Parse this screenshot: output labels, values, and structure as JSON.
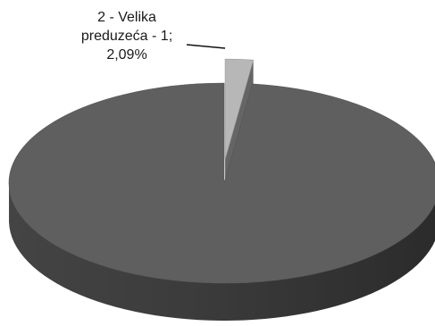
{
  "chart_data": {
    "type": "pie",
    "style": "3d-exploded",
    "legend": "none",
    "slices": [
      {
        "label_lines": [
          "2 - Velika",
          "preduzeća - 1;",
          "2,09%"
        ],
        "percent": 2.09,
        "color": "#b7b7b7",
        "exploded": true
      },
      {
        "label_lines": [],
        "percent": 97.91,
        "color": "#5f5f5f",
        "exploded": false
      }
    ]
  }
}
